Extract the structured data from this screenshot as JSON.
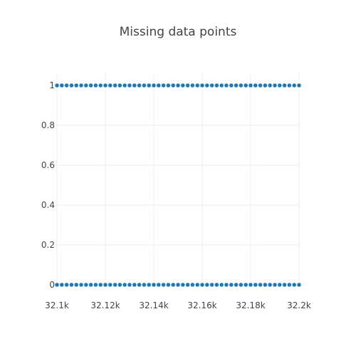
{
  "chart_data": {
    "type": "scatter",
    "title": "Missing data points",
    "xlabel": "",
    "ylabel": "",
    "xlim": [
      32100,
      32200
    ],
    "ylim": [
      0,
      1
    ],
    "x_ticks": [
      32100,
      32120,
      32140,
      32160,
      32180,
      32200
    ],
    "x_tick_labels": [
      "32.1k",
      "32.12k",
      "32.14k",
      "32.16k",
      "32.18k",
      "32.2k"
    ],
    "y_ticks": [
      0,
      0.2,
      0.4,
      0.6,
      0.8,
      1
    ],
    "y_tick_labels": [
      "0",
      "0.2",
      "0.4",
      "0.6",
      "0.8",
      "1"
    ],
    "grid": true,
    "legend": false,
    "series": [
      {
        "color": "#1f77b4",
        "marker": "circle",
        "x": [
          32100,
          32102,
          32104,
          32106,
          32108,
          32110,
          32112,
          32114,
          32116,
          32118,
          32120,
          32122,
          32124,
          32126,
          32128,
          32130,
          32132,
          32134,
          32136,
          32138,
          32140,
          32142,
          32144,
          32146,
          32148,
          32150,
          32152,
          32154,
          32156,
          32158,
          32160,
          32162,
          32164,
          32166,
          32168,
          32170,
          32172,
          32174,
          32176,
          32178,
          32180,
          32182,
          32184,
          32186,
          32188,
          32190,
          32192,
          32194,
          32196,
          32198,
          32200
        ],
        "y": [
          1,
          1,
          1,
          1,
          1,
          1,
          1,
          1,
          1,
          1,
          1,
          1,
          1,
          1,
          1,
          1,
          1,
          1,
          1,
          1,
          1,
          1,
          1,
          1,
          1,
          1,
          1,
          1,
          1,
          1,
          1,
          1,
          1,
          1,
          1,
          1,
          1,
          1,
          1,
          1,
          1,
          1,
          1,
          1,
          1,
          1,
          1,
          1,
          1,
          1,
          1
        ]
      },
      {
        "color": "#1f77b4",
        "marker": "circle",
        "x": [
          32100,
          32102,
          32104,
          32106,
          32108,
          32110,
          32112,
          32114,
          32116,
          32118,
          32120,
          32122,
          32124,
          32126,
          32128,
          32130,
          32132,
          32134,
          32136,
          32138,
          32140,
          32142,
          32144,
          32146,
          32148,
          32150,
          32152,
          32154,
          32156,
          32158,
          32160,
          32162,
          32164,
          32166,
          32168,
          32170,
          32172,
          32174,
          32176,
          32178,
          32180,
          32182,
          32184,
          32186,
          32188,
          32190,
          32192,
          32194,
          32196,
          32198,
          32200
        ],
        "y": [
          0,
          0,
          0,
          0,
          0,
          0,
          0,
          0,
          0,
          0,
          0,
          0,
          0,
          0,
          0,
          0,
          0,
          0,
          0,
          0,
          0,
          0,
          0,
          0,
          0,
          0,
          0,
          0,
          0,
          0,
          0,
          0,
          0,
          0,
          0,
          0,
          0,
          0,
          0,
          0,
          0,
          0,
          0,
          0,
          0,
          0,
          0,
          0,
          0,
          0,
          0
        ]
      }
    ]
  }
}
